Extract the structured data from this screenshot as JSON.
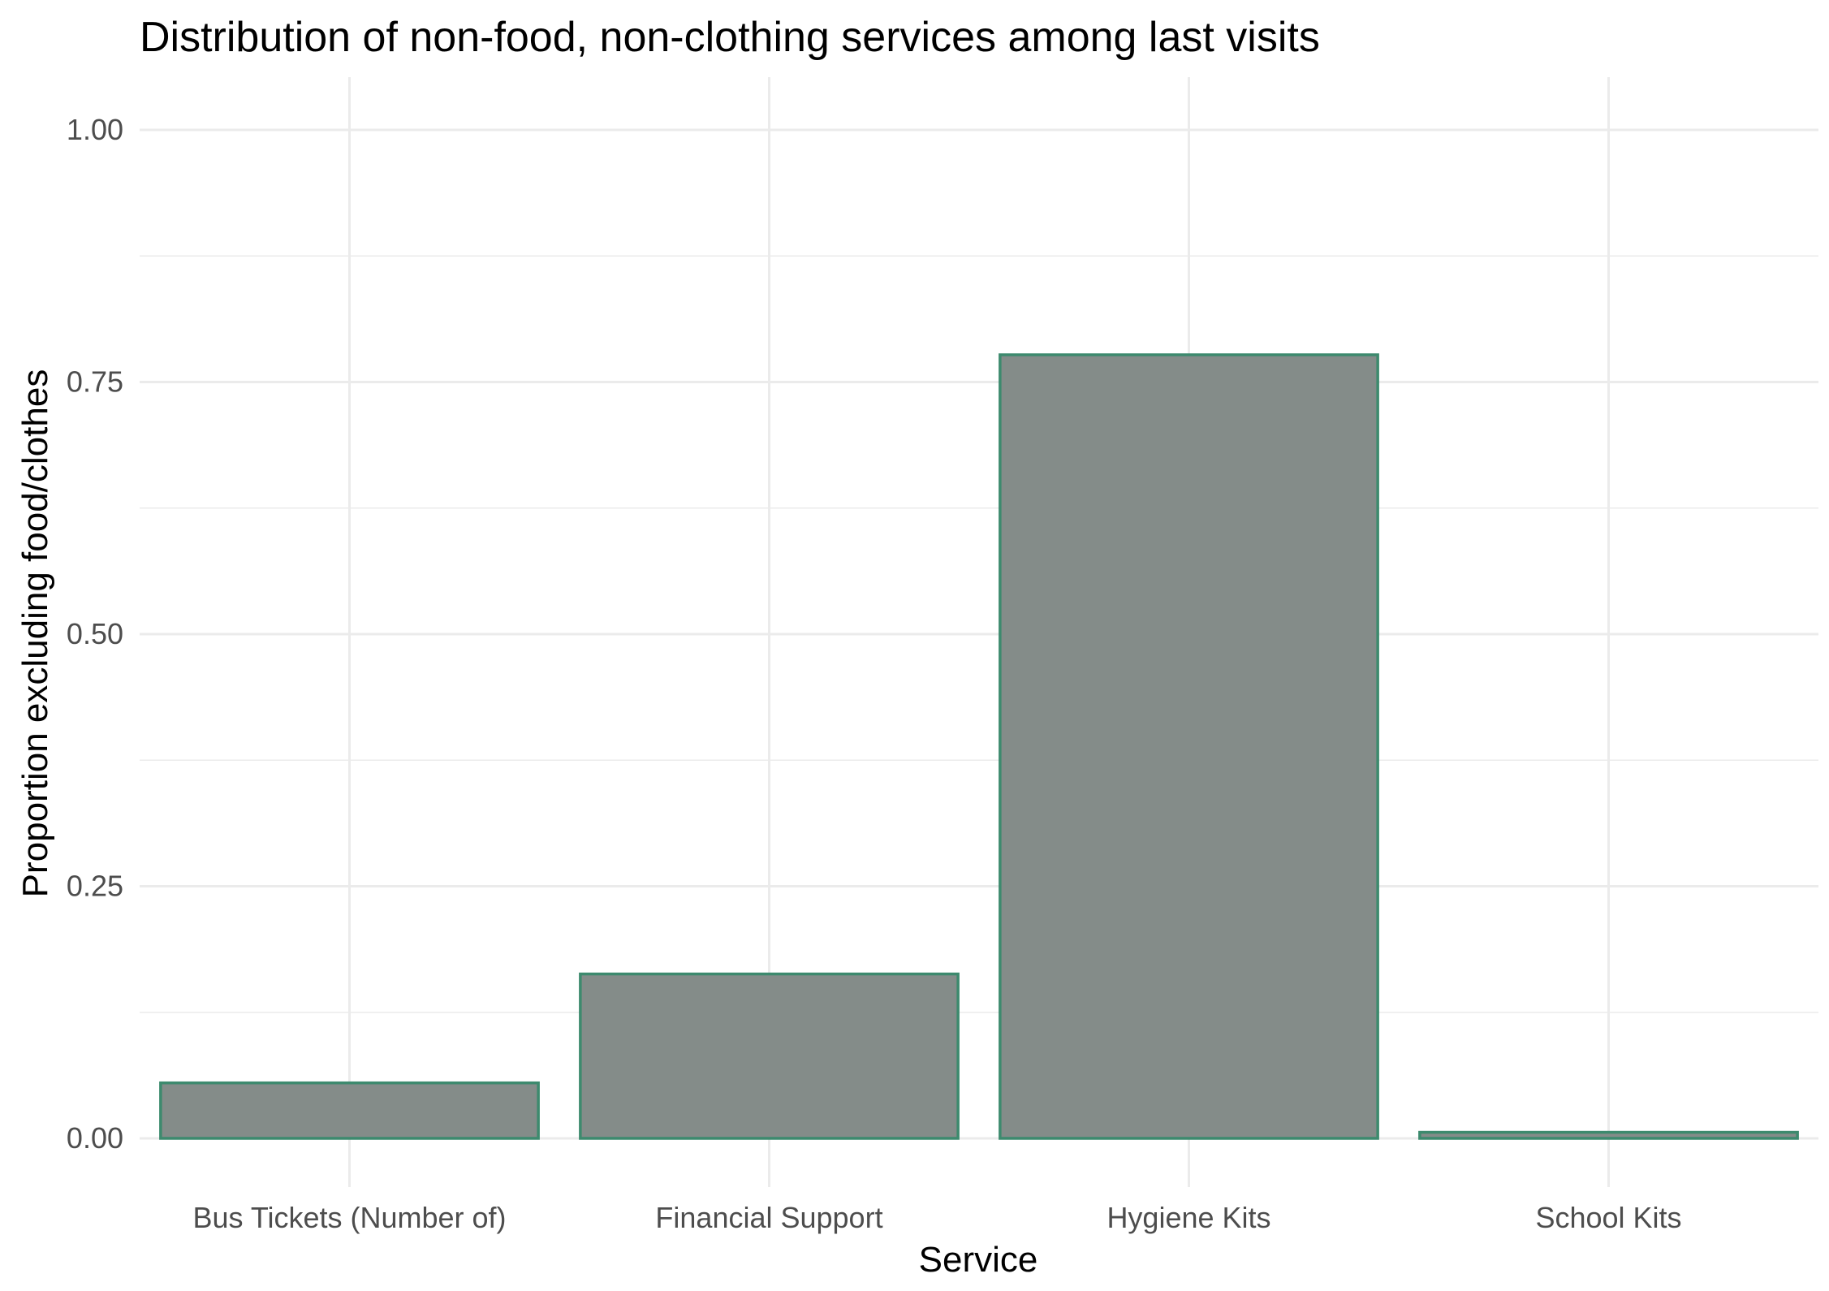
{
  "chart_data": {
    "type": "bar",
    "title": "Distribution of non-food, non-clothing services among last visits",
    "xlabel": "Service",
    "ylabel": "Proportion excluding food/clothes",
    "categories": [
      "Bus Tickets (Number of)",
      "Financial Support",
      "Hygiene Kits",
      "School Kits"
    ],
    "values": [
      0.055,
      0.163,
      0.777,
      0.006
    ],
    "ylim": [
      0,
      1
    ],
    "yticks": [
      "0.00",
      "0.25",
      "0.50",
      "0.75",
      "1.00"
    ],
    "grid": true,
    "legend": "none",
    "colors": {
      "bar_fill": "#848c89",
      "bar_outline": "#3d8a6e",
      "grid": "#ebebeb",
      "tick_text": "#4d4d4d"
    }
  }
}
